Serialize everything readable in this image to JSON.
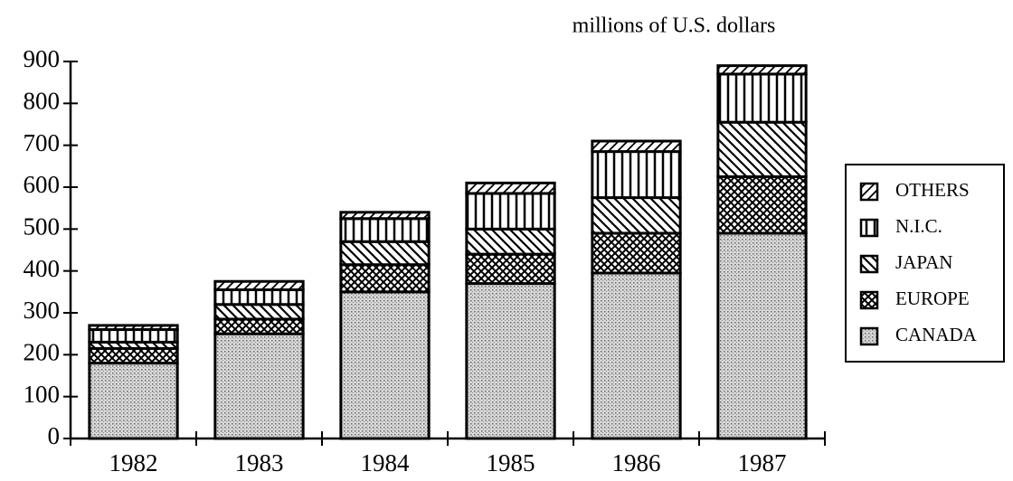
{
  "chart_data": {
    "type": "stacked-bar",
    "title": "millions of U.S. dollars",
    "categories": [
      "1982",
      "1983",
      "1984",
      "1985",
      "1986",
      "1987"
    ],
    "series": [
      {
        "name": "CANADA",
        "color": "#bbbbbb",
        "pattern": "dots",
        "values": [
          180,
          250,
          350,
          370,
          395,
          490
        ]
      },
      {
        "name": "EUROPE",
        "color": "#888888",
        "pattern": "crosshatch",
        "values": [
          35,
          35,
          65,
          70,
          95,
          135
        ]
      },
      {
        "name": "JAPAN",
        "color": "#000000",
        "pattern": "diagonal",
        "values": [
          15,
          35,
          55,
          60,
          85,
          130
        ]
      },
      {
        "name": "N.I.C.",
        "color": "#000000",
        "pattern": "vertical",
        "values": [
          30,
          35,
          55,
          85,
          110,
          115
        ]
      },
      {
        "name": "OTHERS",
        "color": "#000000",
        "pattern": "slash",
        "values": [
          10,
          20,
          15,
          25,
          25,
          20
        ]
      }
    ],
    "ylim": [
      0,
      900
    ],
    "yticks": [
      0,
      100,
      200,
      300,
      400,
      500,
      600,
      700,
      800,
      900
    ],
    "legend": "right"
  }
}
